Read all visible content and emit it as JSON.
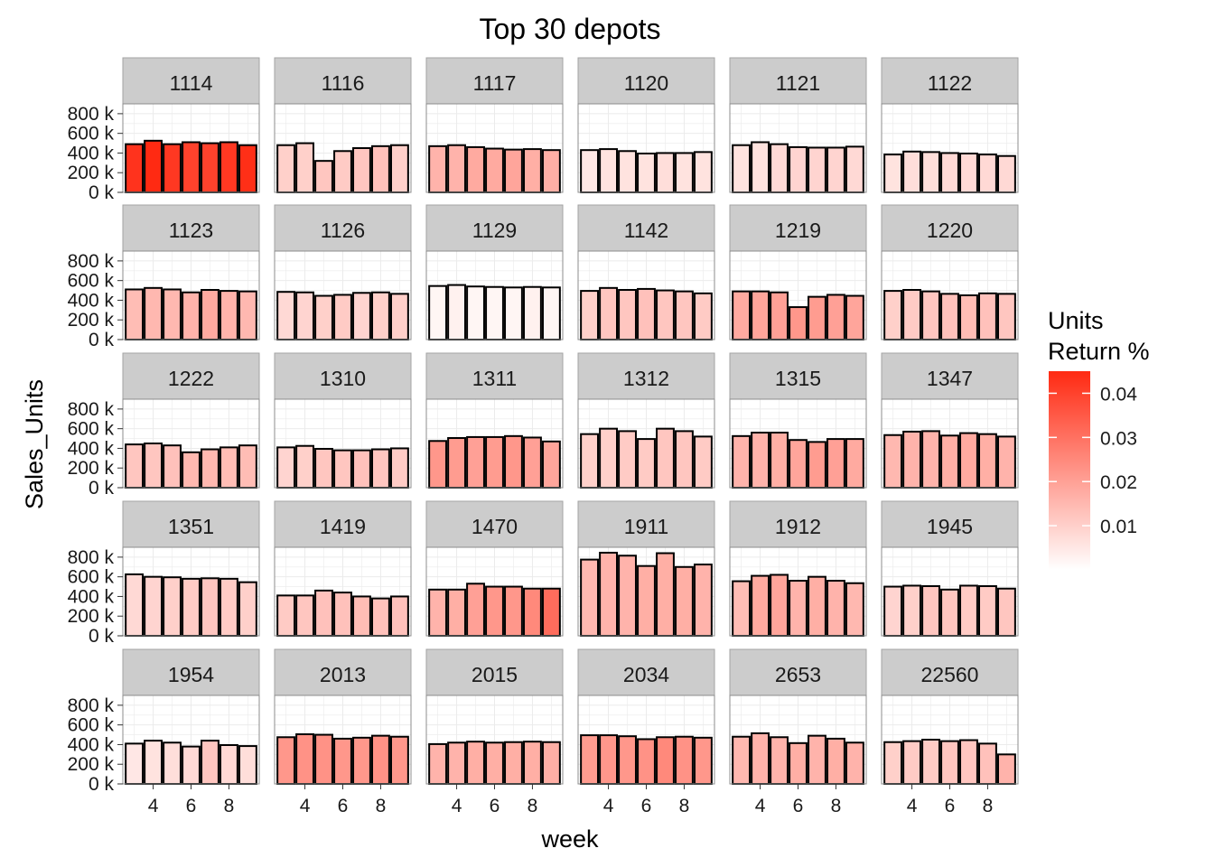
{
  "chart_data": {
    "type": "bar",
    "title": "Top 30 depots",
    "xlabel": "week",
    "ylabel": "Sales_Units",
    "x_ticks": [
      4,
      6,
      8
    ],
    "y_ticks": [
      0,
      200000,
      400000,
      600000,
      800000
    ],
    "y_tick_labels": [
      "0 k",
      "200 k",
      "400 k",
      "600 k",
      "800 k"
    ],
    "ylim": [
      0,
      900000
    ],
    "xlim": [
      2.4,
      9.6
    ],
    "weeks": [
      3,
      4,
      5,
      6,
      7,
      8,
      9
    ],
    "legend": {
      "title": [
        "Units",
        "Return %"
      ],
      "ticks": [
        0.01,
        0.02,
        0.03,
        0.04
      ],
      "tick_labels": [
        "0.01",
        "0.02",
        "0.03",
        "0.04"
      ],
      "range": [
        0.0,
        0.045
      ],
      "low_color": "#ffffff",
      "high_color": "#ff2a12"
    },
    "colors": {
      "strip_bg": "#cccccc",
      "bar_outline": "#000000",
      "grid": "#ebebeb"
    },
    "facets": [
      {
        "depot": "1114",
        "sales": [
          490000,
          525000,
          490000,
          510000,
          500000,
          510000,
          480000
        ],
        "return_pct": [
          0.043,
          0.045,
          0.042,
          0.04,
          0.04,
          0.042,
          0.044
        ]
      },
      {
        "depot": "1116",
        "sales": [
          480000,
          500000,
          320000,
          420000,
          450000,
          470000,
          480000
        ],
        "return_pct": [
          0.01,
          0.01,
          0.012,
          0.011,
          0.012,
          0.013,
          0.01
        ]
      },
      {
        "depot": "1117",
        "sales": [
          470000,
          480000,
          460000,
          445000,
          435000,
          440000,
          430000
        ],
        "return_pct": [
          0.016,
          0.016,
          0.018,
          0.018,
          0.019,
          0.017,
          0.017
        ]
      },
      {
        "depot": "1120",
        "sales": [
          430000,
          440000,
          420000,
          395000,
          400000,
          400000,
          410000
        ],
        "return_pct": [
          0.005,
          0.006,
          0.006,
          0.006,
          0.007,
          0.006,
          0.006
        ]
      },
      {
        "depot": "1121",
        "sales": [
          480000,
          510000,
          490000,
          460000,
          455000,
          455000,
          465000
        ],
        "return_pct": [
          0.006,
          0.006,
          0.008,
          0.009,
          0.009,
          0.009,
          0.008
        ]
      },
      {
        "depot": "1122",
        "sales": [
          385000,
          415000,
          410000,
          400000,
          395000,
          385000,
          370000
        ],
        "return_pct": [
          0.006,
          0.007,
          0.007,
          0.008,
          0.008,
          0.008,
          0.008
        ]
      },
      {
        "depot": "1123",
        "sales": [
          510000,
          525000,
          510000,
          480000,
          505000,
          495000,
          490000
        ],
        "return_pct": [
          0.014,
          0.015,
          0.015,
          0.016,
          0.018,
          0.016,
          0.015
        ]
      },
      {
        "depot": "1126",
        "sales": [
          485000,
          480000,
          445000,
          455000,
          475000,
          480000,
          465000
        ],
        "return_pct": [
          0.008,
          0.009,
          0.01,
          0.011,
          0.009,
          0.01,
          0.01
        ]
      },
      {
        "depot": "1129",
        "sales": [
          545000,
          555000,
          540000,
          535000,
          530000,
          535000,
          530000
        ],
        "return_pct": [
          0.002,
          0.003,
          0.002,
          0.002,
          0.002,
          0.003,
          0.002
        ]
      },
      {
        "depot": "1142",
        "sales": [
          495000,
          525000,
          505000,
          515000,
          500000,
          490000,
          470000
        ],
        "return_pct": [
          0.01,
          0.012,
          0.012,
          0.013,
          0.012,
          0.012,
          0.011
        ]
      },
      {
        "depot": "1219",
        "sales": [
          490000,
          490000,
          480000,
          330000,
          435000,
          455000,
          445000
        ],
        "return_pct": [
          0.018,
          0.019,
          0.02,
          0.022,
          0.021,
          0.02,
          0.019
        ]
      },
      {
        "depot": "1220",
        "sales": [
          495000,
          505000,
          490000,
          465000,
          450000,
          470000,
          465000
        ],
        "return_pct": [
          0.01,
          0.011,
          0.012,
          0.013,
          0.014,
          0.013,
          0.012
        ]
      },
      {
        "depot": "1222",
        "sales": [
          440000,
          450000,
          430000,
          360000,
          390000,
          410000,
          430000
        ],
        "return_pct": [
          0.012,
          0.012,
          0.013,
          0.015,
          0.015,
          0.014,
          0.014
        ]
      },
      {
        "depot": "1310",
        "sales": [
          410000,
          425000,
          395000,
          380000,
          380000,
          390000,
          400000
        ],
        "return_pct": [
          0.009,
          0.01,
          0.012,
          0.012,
          0.013,
          0.012,
          0.011
        ]
      },
      {
        "depot": "1311",
        "sales": [
          475000,
          505000,
          515000,
          515000,
          525000,
          510000,
          470000
        ],
        "return_pct": [
          0.022,
          0.021,
          0.02,
          0.021,
          0.022,
          0.02,
          0.019
        ]
      },
      {
        "depot": "1312",
        "sales": [
          545000,
          600000,
          575000,
          495000,
          600000,
          575000,
          520000
        ],
        "return_pct": [
          0.01,
          0.01,
          0.011,
          0.011,
          0.012,
          0.012,
          0.011
        ]
      },
      {
        "depot": "1315",
        "sales": [
          525000,
          560000,
          560000,
          485000,
          465000,
          495000,
          495000
        ],
        "return_pct": [
          0.016,
          0.016,
          0.017,
          0.019,
          0.021,
          0.02,
          0.018
        ]
      },
      {
        "depot": "1347",
        "sales": [
          535000,
          570000,
          575000,
          530000,
          555000,
          545000,
          520000
        ],
        "return_pct": [
          0.015,
          0.016,
          0.016,
          0.017,
          0.018,
          0.017,
          0.016
        ]
      },
      {
        "depot": "1351",
        "sales": [
          625000,
          600000,
          595000,
          580000,
          585000,
          580000,
          545000
        ],
        "return_pct": [
          0.008,
          0.009,
          0.01,
          0.011,
          0.012,
          0.011,
          0.01
        ]
      },
      {
        "depot": "1419",
        "sales": [
          410000,
          410000,
          460000,
          440000,
          400000,
          380000,
          400000
        ],
        "return_pct": [
          0.011,
          0.012,
          0.013,
          0.013,
          0.014,
          0.013,
          0.013
        ]
      },
      {
        "depot": "1470",
        "sales": [
          470000,
          470000,
          530000,
          500000,
          500000,
          480000,
          480000
        ],
        "return_pct": [
          0.016,
          0.017,
          0.02,
          0.022,
          0.022,
          0.025,
          0.031
        ]
      },
      {
        "depot": "1911",
        "sales": [
          775000,
          845000,
          815000,
          710000,
          840000,
          700000,
          725000
        ],
        "return_pct": [
          0.015,
          0.016,
          0.016,
          0.017,
          0.017,
          0.017,
          0.016
        ]
      },
      {
        "depot": "1912",
        "sales": [
          555000,
          610000,
          620000,
          560000,
          600000,
          560000,
          535000
        ],
        "return_pct": [
          0.014,
          0.018,
          0.019,
          0.016,
          0.017,
          0.016,
          0.015
        ]
      },
      {
        "depot": "1945",
        "sales": [
          500000,
          510000,
          505000,
          470000,
          510000,
          505000,
          480000
        ],
        "return_pct": [
          0.009,
          0.01,
          0.012,
          0.012,
          0.011,
          0.011,
          0.012
        ]
      },
      {
        "depot": "1954",
        "sales": [
          410000,
          440000,
          420000,
          380000,
          440000,
          395000,
          385000
        ],
        "return_pct": [
          0.005,
          0.006,
          0.007,
          0.008,
          0.012,
          0.008,
          0.007
        ]
      },
      {
        "depot": "2013",
        "sales": [
          475000,
          505000,
          500000,
          460000,
          470000,
          490000,
          480000
        ],
        "return_pct": [
          0.022,
          0.023,
          0.023,
          0.022,
          0.022,
          0.023,
          0.022
        ]
      },
      {
        "depot": "2015",
        "sales": [
          405000,
          420000,
          430000,
          420000,
          425000,
          430000,
          425000
        ],
        "return_pct": [
          0.016,
          0.016,
          0.017,
          0.017,
          0.017,
          0.017,
          0.017
        ]
      },
      {
        "depot": "2034",
        "sales": [
          495000,
          495000,
          485000,
          455000,
          475000,
          480000,
          470000
        ],
        "return_pct": [
          0.021,
          0.022,
          0.022,
          0.023,
          0.025,
          0.023,
          0.022
        ]
      },
      {
        "depot": "2653",
        "sales": [
          480000,
          515000,
          475000,
          415000,
          490000,
          460000,
          420000
        ],
        "return_pct": [
          0.015,
          0.016,
          0.016,
          0.017,
          0.016,
          0.017,
          0.016
        ]
      },
      {
        "depot": "22560",
        "sales": [
          425000,
          435000,
          450000,
          435000,
          445000,
          410000,
          300000
        ],
        "return_pct": [
          0.01,
          0.011,
          0.011,
          0.012,
          0.012,
          0.013,
          0.016
        ]
      }
    ]
  }
}
